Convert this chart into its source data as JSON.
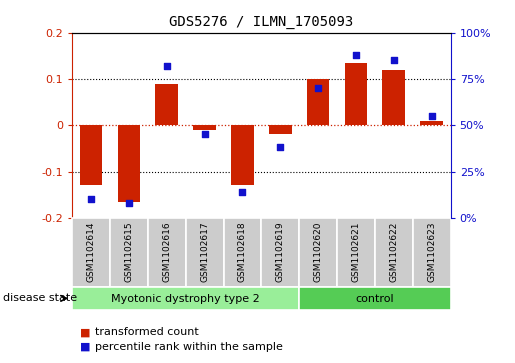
{
  "title": "GDS5276 / ILMN_1705093",
  "samples": [
    "GSM1102614",
    "GSM1102615",
    "GSM1102616",
    "GSM1102617",
    "GSM1102618",
    "GSM1102619",
    "GSM1102620",
    "GSM1102621",
    "GSM1102622",
    "GSM1102623"
  ],
  "red_values": [
    -0.13,
    -0.165,
    0.09,
    -0.01,
    -0.13,
    -0.02,
    0.1,
    0.135,
    0.12,
    0.01
  ],
  "blue_values": [
    10,
    8,
    82,
    45,
    14,
    38,
    70,
    88,
    85,
    55
  ],
  "ylim": [
    -0.2,
    0.2
  ],
  "y2lim": [
    0,
    100
  ],
  "yticks": [
    -0.2,
    -0.1,
    0.0,
    0.1,
    0.2
  ],
  "ytick_labels": [
    "-0.2",
    "-0.1",
    "0",
    "0.1",
    "0.2"
  ],
  "y2ticks": [
    0,
    25,
    50,
    75,
    100
  ],
  "y2ticklabels": [
    "0%",
    "25%",
    "50%",
    "75%",
    "100%"
  ],
  "hlines_dotted": [
    0.1,
    -0.1
  ],
  "hline_red": 0.0,
  "red_color": "#cc2200",
  "blue_color": "#1111cc",
  "bar_width": 0.6,
  "group1_label": "Myotonic dystrophy type 2",
  "group2_label": "control",
  "group1_color": "#99ee99",
  "group2_color": "#55cc55",
  "disease_state_label": "disease state",
  "legend_red": "transformed count",
  "legend_blue": "percentile rank within the sample",
  "xlabel_area_color": "#cccccc",
  "n_group1": 6,
  "n_group2": 4
}
